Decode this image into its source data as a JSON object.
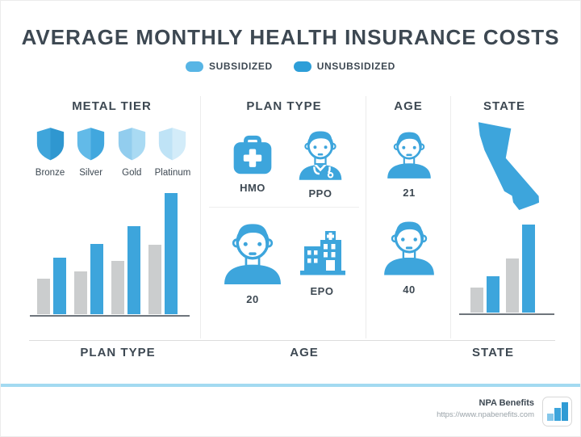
{
  "title": "AVERAGE MONTHLY HEALTH INSURANCE COSTS",
  "legend": {
    "items": [
      {
        "label": "SUBSIDIZED",
        "color": "#57b5e5"
      },
      {
        "label": "UNSUBSIDIZED",
        "color": "#2d9ed8"
      }
    ]
  },
  "sections": {
    "metal_tier": {
      "title": "METAL TIER",
      "tiers": [
        {
          "label": "Bronze",
          "color_left": "#3fa5db",
          "color_right": "#2f97d0"
        },
        {
          "label": "Silver",
          "color_left": "#62bae8",
          "color_right": "#41a7de"
        },
        {
          "label": "Gold",
          "color_left": "#92cdee",
          "color_right": "#a9daf3"
        },
        {
          "label": "Platinum",
          "color_left": "#bfe3f6",
          "color_right": "#d3ecf9"
        }
      ]
    },
    "plan_type": {
      "title": "PLAN TYPE",
      "items": [
        {
          "label": "HMO",
          "icon": "first-aid-kit-icon"
        },
        {
          "label": "PPO",
          "icon": "doctor-icon"
        },
        {
          "label": "20",
          "icon": "person-icon"
        },
        {
          "label": "EPO",
          "icon": "hospital-icon"
        }
      ]
    },
    "age": {
      "title": "AGE",
      "items": [
        {
          "label": "21",
          "icon": "person-icon"
        },
        {
          "label": "40",
          "icon": "person-icon"
        }
      ]
    },
    "state": {
      "title": "STATE",
      "map": "california-map"
    }
  },
  "bottom_labels": [
    "PLAN TYPE",
    "AGE",
    "STATE"
  ],
  "footer": {
    "brand": "NPA Benefits",
    "url": "https://www.npabenefits.com",
    "logo": "bar-chart-logo"
  },
  "colors": {
    "bar_gray": "#cbcdce",
    "bar_blue": "#3da5dc",
    "title_dark": "#3d4852",
    "baseline": "#6e757c",
    "accent_band": "#a3daf1"
  },
  "chart_data": [
    {
      "type": "bar",
      "title": "Metal tier: average monthly cost, subsidized vs unsubsidized (no axis values shown)",
      "categories": [
        "Bronze",
        "Silver",
        "Gold",
        "Platinum"
      ],
      "series": [
        {
          "name": "SUBSIDIZED",
          "color": "#cbcdce",
          "values": [
            44,
            53,
            66,
            86
          ]
        },
        {
          "name": "UNSUBSIDIZED",
          "color": "#3da5dc",
          "values": [
            70,
            87,
            109,
            150
          ]
        }
      ],
      "units": "relative bar height in px; chart has no tick labels",
      "grid": false,
      "legend_position": "top-of-page"
    },
    {
      "type": "bar",
      "title": "State (California): average monthly cost, subsidized vs unsubsidized (no axis values shown)",
      "categories": [
        "pair-1",
        "pair-2"
      ],
      "series": [
        {
          "name": "SUBSIDIZED",
          "color": "#cbcdce",
          "values": [
            31,
            67
          ]
        },
        {
          "name": "UNSUBSIDIZED",
          "color": "#3da5dc",
          "values": [
            45,
            109
          ]
        }
      ],
      "units": "relative bar height in px; chart has no tick labels",
      "grid": false,
      "legend_position": "top-of-page"
    }
  ]
}
